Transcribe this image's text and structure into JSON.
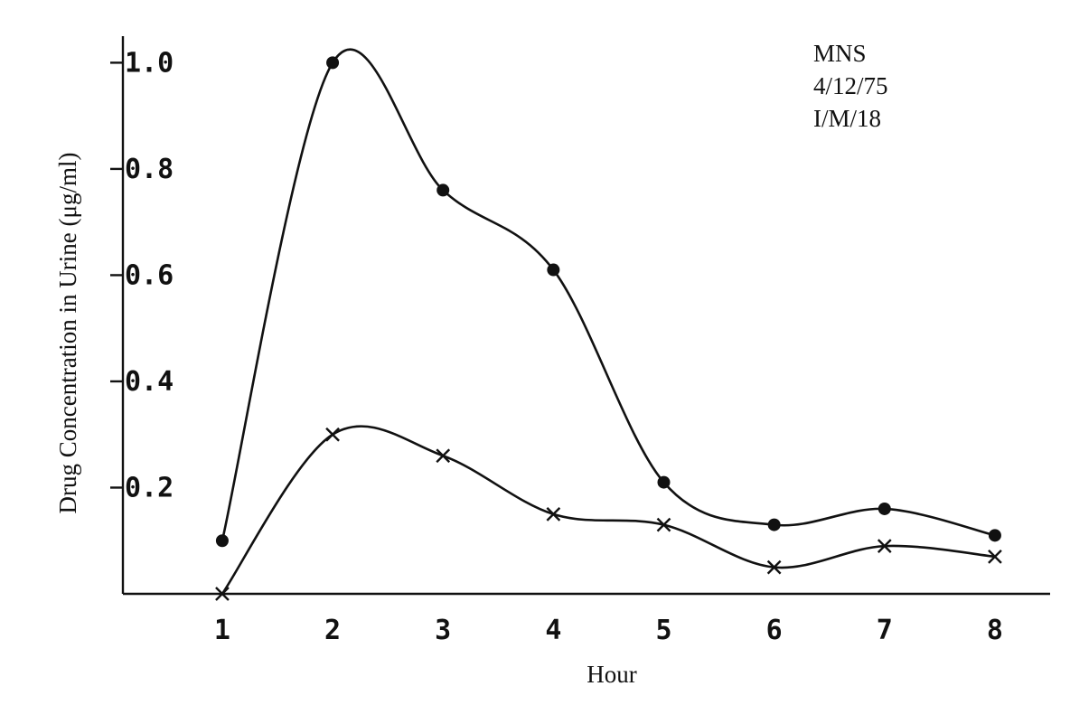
{
  "chart_data": {
    "type": "line",
    "title": "",
    "xlabel": "Hour",
    "ylabel": "Drug Concentration in Urine (μg/ml)",
    "x": [
      1,
      2,
      3,
      4,
      5,
      6,
      7,
      8
    ],
    "x_tick_labels": [
      "1",
      "2",
      "3",
      "4",
      "5",
      "6",
      "7",
      "8"
    ],
    "y_tick_values": [
      0.2,
      0.4,
      0.6,
      0.8,
      1.0
    ],
    "y_tick_labels": [
      "0.2",
      "0.4",
      "0.6",
      "0.8",
      "1.0"
    ],
    "xlim": [
      0.1,
      8.5
    ],
    "ylim": [
      0,
      1.05
    ],
    "grid": false,
    "series": [
      {
        "marker": "dot",
        "values": [
          0.1,
          1.0,
          0.76,
          0.61,
          0.21,
          0.13,
          0.16,
          0.11
        ]
      },
      {
        "marker": "cross",
        "values": [
          0.0,
          0.3,
          0.26,
          0.15,
          0.13,
          0.05,
          0.09,
          0.07
        ]
      }
    ],
    "annotations": [
      "MNS",
      "4/12/75",
      "I/M/18"
    ]
  }
}
